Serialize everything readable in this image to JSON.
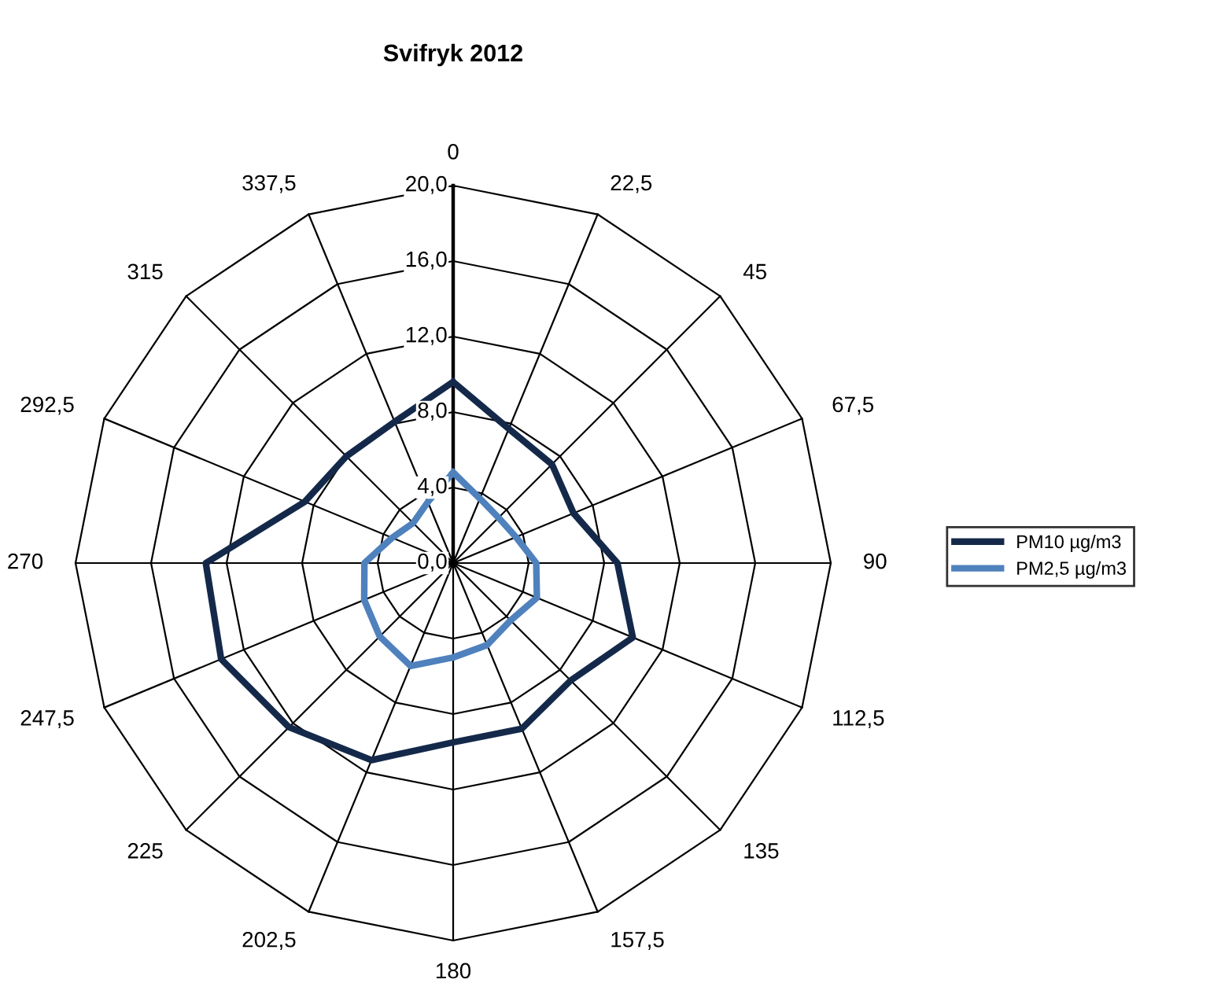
{
  "chart_data": {
    "type": "radar",
    "title": "Svifryk 2012",
    "categories": [
      "0",
      "22,5",
      "45",
      "67,5",
      "90",
      "112,5",
      "135",
      "157,5",
      "180",
      "202,5",
      "225",
      "247,5",
      "270",
      "292,5",
      "315",
      "337,5"
    ],
    "series": [
      {
        "name": "PM10 µg/m3",
        "color": "#14294a",
        "values": [
          9.6,
          7.7,
          7.4,
          6.9,
          8.7,
          10.3,
          8.8,
          9.5,
          9.5,
          11.3,
          12.3,
          13.3,
          13.1,
          8.5,
          8.0,
          8.1
        ]
      },
      {
        "name": "PM2,5 µg/m3",
        "color": "#4f81bd",
        "values": [
          4.8,
          3.7,
          3.4,
          3.6,
          4.4,
          4.8,
          4.3,
          4.7,
          5.0,
          5.9,
          5.5,
          5.1,
          4.7,
          3.5,
          3.0,
          3.5
        ]
      }
    ],
    "ylim": [
      0,
      20
    ],
    "yticks": [
      {
        "value": 0,
        "label": "0,0"
      },
      {
        "value": 4,
        "label": "4,0"
      },
      {
        "value": 8,
        "label": "8,0"
      },
      {
        "value": 12,
        "label": "12,0"
      },
      {
        "value": 16,
        "label": "16,0"
      },
      {
        "value": 20,
        "label": "20,0"
      }
    ],
    "grid": true,
    "legend": "right",
    "marker": "none",
    "line_style": "solid"
  }
}
